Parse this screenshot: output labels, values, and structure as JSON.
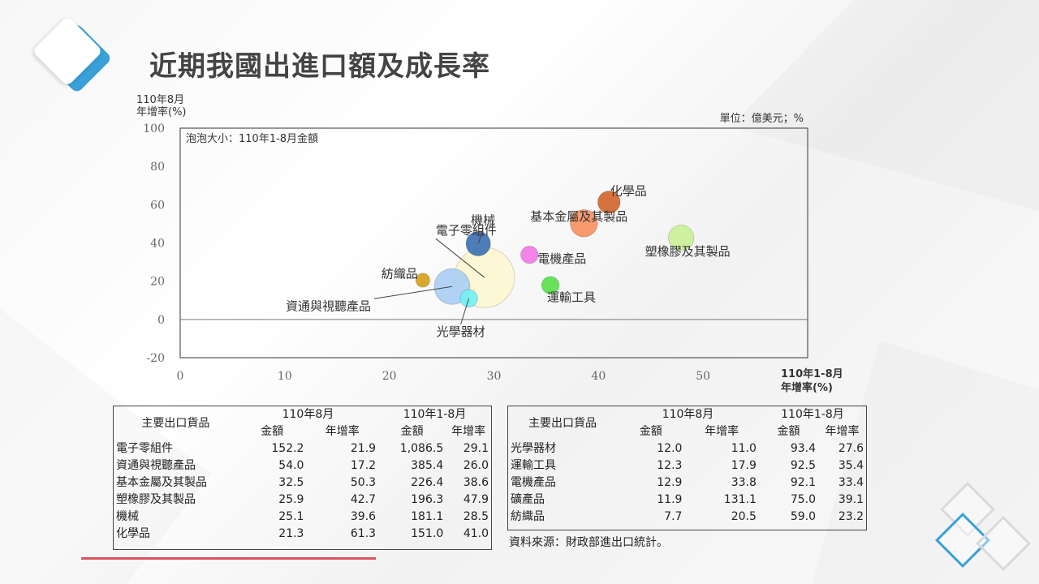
{
  "title": "近期我國出進口額及成長率",
  "chart_data": {
    "type": "bubble",
    "y_axis_title": [
      "110年8月",
      "年增率(%)"
    ],
    "x_axis_title": [
      "110年1-8月",
      "年增率(%)"
    ],
    "unit_note": "單位：億美元；%",
    "bubble_note": "泡泡大小：110年1-8月金額",
    "xlim": [
      0,
      60
    ],
    "ylim": [
      -20,
      100
    ],
    "x_ticks": [
      0,
      10,
      20,
      30,
      40,
      50
    ],
    "y_ticks": [
      -20,
      0,
      20,
      40,
      60,
      80,
      100
    ],
    "grid": false,
    "points": [
      {
        "name": "電子零組件",
        "x": 29.1,
        "y": 21.9,
        "size": 1086.5,
        "color": "#fdf6d0"
      },
      {
        "name": "資通與視聽產品",
        "x": 26.0,
        "y": 17.2,
        "size": 385.4,
        "color": "#a9cdf3"
      },
      {
        "name": "基本金屬及其製品",
        "x": 38.6,
        "y": 50.3,
        "size": 226.4,
        "color": "#f58f5e"
      },
      {
        "name": "塑橡膠及其製品",
        "x": 47.9,
        "y": 42.7,
        "size": 196.3,
        "color": "#c9f195"
      },
      {
        "name": "機械",
        "x": 28.5,
        "y": 39.6,
        "size": 181.1,
        "color": "#3a6fb0"
      },
      {
        "name": "化學品",
        "x": 41.0,
        "y": 61.3,
        "size": 151.0,
        "color": "#d0642a"
      },
      {
        "name": "光學器材",
        "x": 27.6,
        "y": 11.0,
        "size": 93.4,
        "color": "#6ff0f5"
      },
      {
        "name": "運輸工具",
        "x": 35.4,
        "y": 17.9,
        "size": 92.5,
        "color": "#58e048"
      },
      {
        "name": "電機產品",
        "x": 33.4,
        "y": 33.8,
        "size": 92.1,
        "color": "#f277e6"
      },
      {
        "name": "紡織品",
        "x": 23.2,
        "y": 20.5,
        "size": 59.0,
        "color": "#d4a017"
      }
    ]
  },
  "left_table": {
    "header_item": "主要出口貨品",
    "group1": "110年8月",
    "group2": "110年1-8月",
    "col_amount": "金額",
    "col_growth": "年增率",
    "rows": [
      [
        "電子零組件",
        "152.2",
        "21.9",
        "1,086.5",
        "29.1"
      ],
      [
        "資通與視聽產品",
        "54.0",
        "17.2",
        "385.4",
        "26.0"
      ],
      [
        "基本金屬及其製品",
        "32.5",
        "50.3",
        "226.4",
        "38.6"
      ],
      [
        "塑橡膠及其製品",
        "25.9",
        "42.7",
        "196.3",
        "47.9"
      ],
      [
        "機械",
        "25.1",
        "39.6",
        "181.1",
        "28.5"
      ],
      [
        "化學品",
        "21.3",
        "61.3",
        "151.0",
        "41.0"
      ]
    ]
  },
  "right_table": {
    "header_item": "主要出口貨品",
    "group1": "110年8月",
    "group2": "110年1-8月",
    "col_amount": "金額",
    "col_growth": "年增率",
    "rows": [
      [
        "光學器材",
        "12.0",
        "11.0",
        "93.4",
        "27.6"
      ],
      [
        "運輸工具",
        "12.3",
        "17.9",
        "92.5",
        "35.4"
      ],
      [
        "電機產品",
        "12.9",
        "33.8",
        "92.1",
        "33.4"
      ],
      [
        "礦產品",
        "11.9",
        "131.1",
        "75.0",
        "39.1"
      ],
      [
        "紡織品",
        "7.7",
        "20.5",
        "59.0",
        "23.2"
      ]
    ]
  },
  "source_note": "資料來源：財政部進出口統計。"
}
